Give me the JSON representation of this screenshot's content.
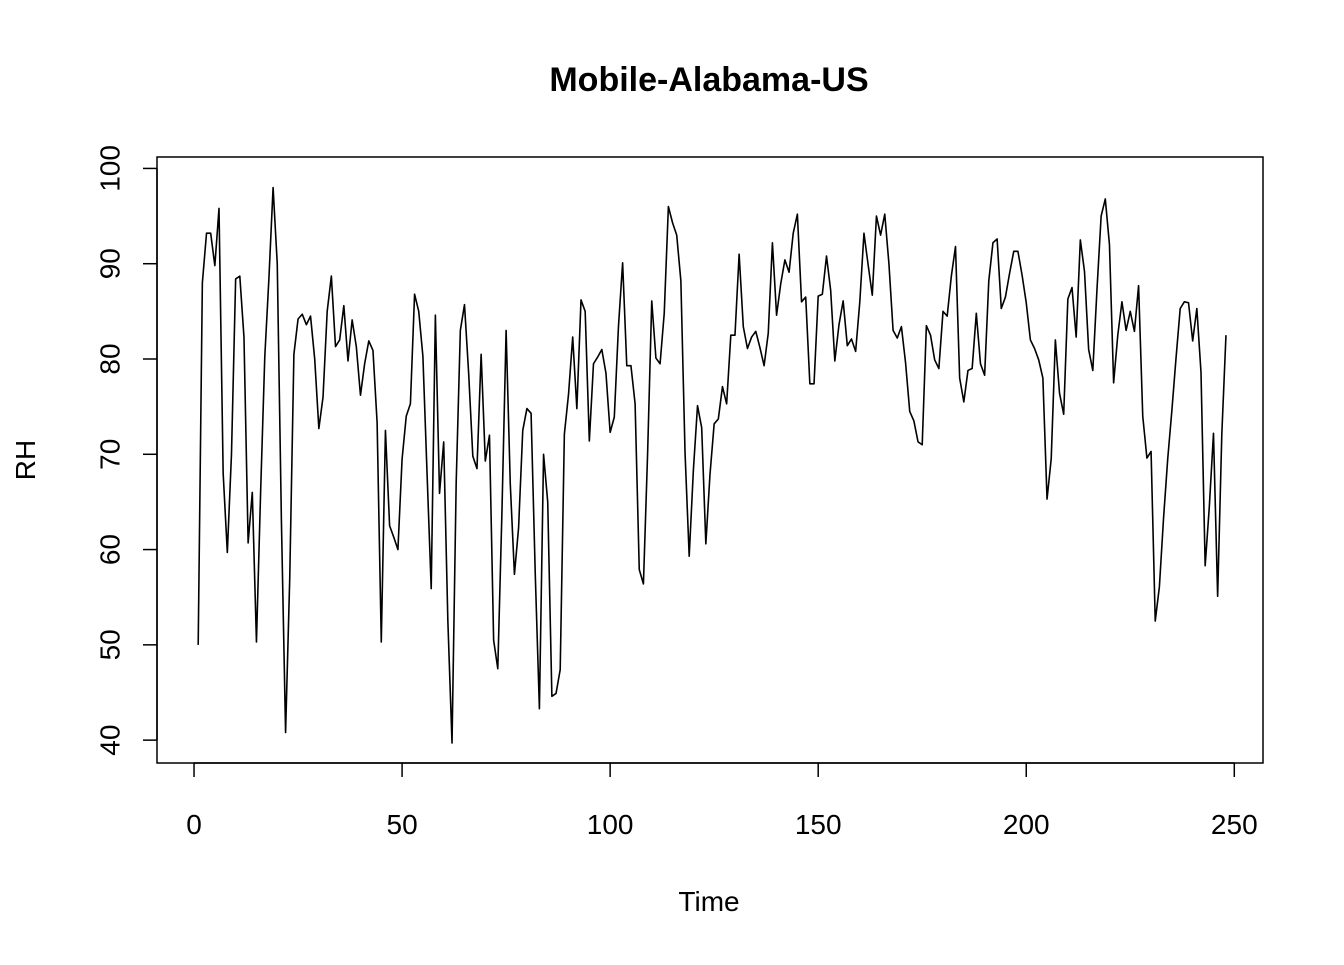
{
  "chart_data": {
    "type": "line",
    "title": "Mobile-Alabama-US",
    "xlabel": "Time",
    "ylabel": "RH",
    "xlim": [
      -8.9,
      256.9
    ],
    "ylim": [
      37.6,
      101.2
    ],
    "xticks": [
      0,
      50,
      100,
      150,
      200,
      250
    ],
    "yticks": [
      40,
      50,
      60,
      70,
      80,
      90,
      100
    ],
    "xtick_labels": [
      "0",
      "50",
      "100",
      "150",
      "200",
      "250"
    ],
    "ytick_labels": [
      "40",
      "50",
      "60",
      "70",
      "80",
      "90",
      "100"
    ],
    "grid": false,
    "line_color": "#000000",
    "series": [
      {
        "x": [
          1,
          2,
          3,
          4,
          5,
          6,
          7,
          8,
          9,
          10,
          11,
          12,
          13,
          14,
          15,
          16,
          17,
          18,
          19,
          20,
          21,
          22,
          23,
          24,
          25,
          26,
          27,
          28,
          29,
          30,
          31,
          32,
          33,
          34,
          35,
          36,
          37,
          38,
          39,
          40,
          41,
          42,
          43,
          44,
          45,
          46,
          47,
          48,
          49,
          50,
          51,
          52,
          53,
          54,
          55,
          56,
          57,
          58,
          59,
          60,
          61,
          62,
          63,
          64,
          65,
          66,
          67,
          68,
          69,
          70,
          71,
          72,
          73,
          74,
          75,
          76,
          77,
          78,
          79,
          80,
          81,
          82,
          83,
          84,
          85,
          86,
          87,
          88,
          89,
          90,
          91,
          92,
          93,
          94,
          95,
          96,
          97,
          98,
          99,
          100,
          101,
          102,
          103,
          104,
          105,
          106,
          107,
          108,
          109,
          110,
          111,
          112,
          113,
          114,
          115,
          116,
          117,
          118,
          119,
          120,
          121,
          122,
          123,
          124,
          125,
          126,
          127,
          128,
          129,
          130,
          131,
          132,
          133,
          134,
          135,
          136,
          137,
          138,
          139,
          140,
          141,
          142,
          143,
          144,
          145,
          146,
          147,
          148,
          149,
          150,
          151,
          152,
          153,
          154,
          155,
          156,
          157,
          158,
          159,
          160,
          161,
          162,
          163,
          164,
          165,
          166,
          167,
          168,
          169,
          170,
          171,
          172,
          173,
          174,
          175,
          176,
          177,
          178,
          179,
          180,
          181,
          182,
          183,
          184,
          185,
          186,
          187,
          188,
          189,
          190,
          191,
          192,
          193,
          194,
          195,
          196,
          197,
          198,
          199,
          200,
          201,
          202,
          203,
          204,
          205,
          206,
          207,
          208,
          209,
          210,
          211,
          212,
          213,
          214,
          215,
          216,
          217,
          218,
          219,
          220,
          221,
          222,
          223,
          224,
          225,
          226,
          227,
          228,
          229,
          230,
          231,
          232,
          233,
          234,
          235,
          236,
          237,
          238,
          239,
          240,
          241,
          242,
          243,
          244,
          245,
          246,
          247,
          248
        ],
        "values": [
          50.0,
          88.0,
          93.2,
          93.2,
          89.8,
          95.8,
          68.0,
          59.7,
          70.0,
          88.4,
          88.7,
          82.3,
          60.7,
          66.0,
          50.3,
          66.0,
          80.2,
          88.5,
          98.0,
          90.0,
          63.0,
          40.8,
          57.0,
          80.5,
          84.2,
          84.7,
          83.6,
          84.5,
          80.0,
          72.7,
          76.0,
          85.0,
          88.7,
          81.3,
          82.0,
          85.6,
          79.8,
          84.1,
          81.3,
          76.2,
          79.5,
          81.9,
          80.9,
          73.3,
          50.3,
          72.5,
          62.5,
          61.3,
          60.0,
          69.5,
          74.0,
          75.3,
          86.8,
          85.0,
          80.3,
          68.0,
          55.9,
          84.6,
          65.9,
          71.3,
          52.5,
          39.7,
          67.0,
          83.0,
          85.7,
          78.5,
          69.8,
          68.5,
          80.5,
          69.3,
          72.0,
          50.5,
          47.5,
          64.0,
          83.0,
          66.9,
          57.4,
          62.3,
          72.5,
          74.8,
          74.3,
          57.5,
          43.3,
          70.0,
          65.0,
          44.6,
          44.9,
          47.4,
          72.1,
          76.3,
          82.3,
          74.8,
          86.2,
          85.0,
          71.4,
          79.5,
          80.2,
          81.0,
          78.5,
          72.3,
          73.9,
          83.4,
          90.1,
          79.3,
          79.3,
          75.3,
          57.9,
          56.4,
          70.0,
          86.1,
          80.1,
          79.5,
          84.8,
          96.0,
          94.3,
          93.0,
          88.2,
          70.2,
          59.3,
          68.3,
          75.1,
          72.8,
          60.6,
          67.9,
          73.2,
          73.7,
          77.1,
          75.3,
          82.5,
          82.5,
          91.0,
          83.4,
          81.1,
          82.3,
          82.9,
          81.2,
          79.3,
          82.7,
          92.2,
          84.6,
          87.9,
          90.4,
          89.1,
          93.2,
          95.2,
          86.0,
          86.5,
          77.4,
          77.4,
          86.6,
          86.8,
          90.8,
          87.2,
          79.8,
          83.6,
          86.1,
          81.4,
          82.1,
          80.8,
          86.0,
          93.2,
          89.9,
          86.7,
          95.0,
          93.0,
          95.2,
          90.0,
          83.0,
          82.2,
          83.4,
          79.6,
          74.5,
          73.5,
          71.3,
          71.0,
          83.5,
          82.5,
          79.9,
          79.0,
          85.0,
          84.5,
          88.7,
          91.8,
          78.0,
          75.5,
          78.8,
          79.0,
          84.8,
          79.5,
          78.3,
          88.2,
          92.2,
          92.6,
          85.3,
          86.5,
          89.0,
          91.3,
          91.3,
          88.8,
          85.9,
          82.0,
          81.1,
          79.9,
          78.0,
          65.3,
          69.5,
          82.0,
          76.4,
          74.2,
          86.3,
          87.5,
          82.3,
          92.5,
          89.2,
          81.0,
          78.8,
          87.3,
          95.0,
          96.8,
          92.0,
          77.5,
          82.5,
          86.0,
          83.0,
          85.0,
          82.9,
          87.7,
          74.0,
          69.6,
          70.3,
          52.5,
          56.1,
          63.3,
          69.5,
          74.6,
          80.1,
          85.3,
          86.0,
          85.9,
          81.9,
          85.3,
          78.6,
          58.3,
          64.5,
          72.2,
          55.1,
          72.1,
          82.5
        ]
      }
    ]
  }
}
